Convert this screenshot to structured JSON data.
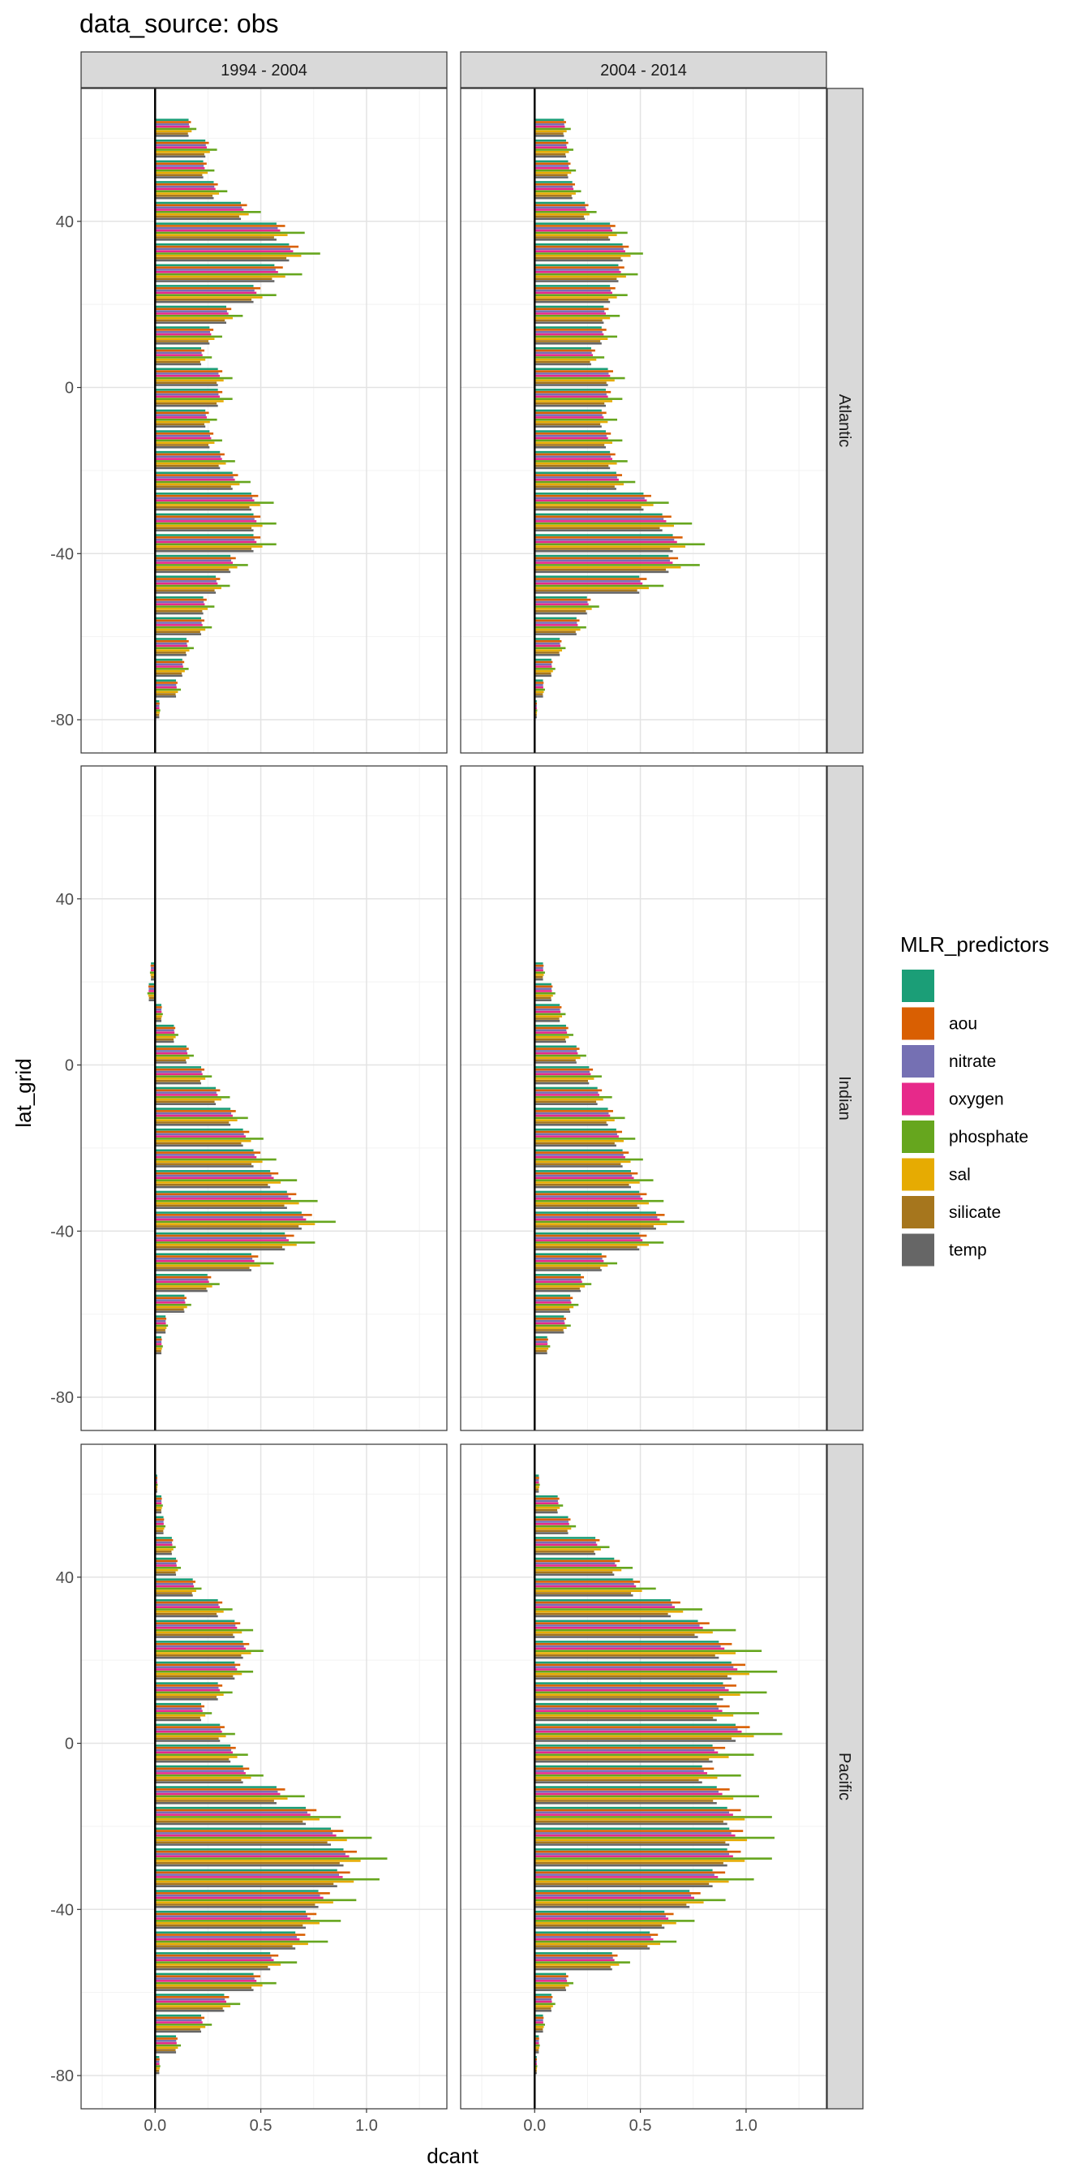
{
  "chart_data": {
    "type": "bar",
    "orientation": "horizontal",
    "title": "data_source: obs",
    "xlabel": "dcant",
    "ylabel": "lat_grid",
    "xlim": [
      -0.35,
      1.38
    ],
    "ylim": [
      -88,
      72
    ],
    "x_ticks": [
      0.0,
      0.5,
      1.0
    ],
    "x_tick_labels": [
      "0.0",
      "0.5",
      "1.0"
    ],
    "y_ticks": [
      -80,
      -40,
      0,
      40
    ],
    "y_tick_labels": [
      "-80",
      "-40",
      "0",
      "40"
    ],
    "grid": true,
    "columns": [
      "1994 - 2004",
      "2004 - 2014"
    ],
    "rows": [
      "Atlantic",
      "Indian",
      "Pacific"
    ],
    "legend": {
      "title": "MLR_predictors",
      "position": "right",
      "entries": [
        {
          "label": "",
          "color": "#1B9E77"
        },
        {
          "label": "aou",
          "color": "#D95F02"
        },
        {
          "label": "nitrate",
          "color": "#7570B3"
        },
        {
          "label": "oxygen",
          "color": "#E7298A"
        },
        {
          "label": "phosphate",
          "color": "#66A61E"
        },
        {
          "label": "sal",
          "color": "#E6AB02"
        },
        {
          "label": "silicate",
          "color": "#A6761D"
        },
        {
          "label": "temp",
          "color": "#666666"
        }
      ]
    },
    "bin_width_deg": 5,
    "series_order": [
      "",
      "aou",
      "nitrate",
      "oxygen",
      "phosphate",
      "sal",
      "silicate",
      "temp"
    ],
    "panels": [
      {
        "row": "Atlantic",
        "col": "1994 - 2004",
        "lat": [
          62.5,
          57.5,
          52.5,
          47.5,
          42.5,
          37.5,
          32.5,
          27.5,
          22.5,
          17.5,
          12.5,
          7.5,
          2.5,
          -2.5,
          -7.5,
          -12.5,
          -17.5,
          -22.5,
          -27.5,
          -32.5,
          -37.5,
          -42.5,
          -47.5,
          -52.5,
          -57.5,
          -62.5,
          -67.5,
          -72.5,
          -77.5,
          -82.5
        ],
        "value": [
          0.16,
          0.24,
          0.23,
          0.28,
          0.41,
          0.58,
          0.64,
          0.57,
          0.47,
          0.34,
          0.26,
          0.22,
          0.3,
          0.3,
          0.24,
          0.26,
          0.31,
          0.37,
          0.46,
          0.47,
          0.47,
          0.36,
          0.29,
          0.23,
          0.22,
          0.15,
          0.13,
          0.1,
          0.02,
          0.0
        ]
      },
      {
        "row": "Atlantic",
        "col": "2004 - 2014",
        "lat": [
          62.5,
          57.5,
          52.5,
          47.5,
          42.5,
          37.5,
          32.5,
          27.5,
          22.5,
          17.5,
          12.5,
          7.5,
          2.5,
          -2.5,
          -7.5,
          -12.5,
          -17.5,
          -22.5,
          -27.5,
          -32.5,
          -37.5,
          -42.5,
          -47.5,
          -52.5,
          -57.5,
          -62.5,
          -67.5,
          -72.5,
          -77.5,
          -82.5
        ],
        "value": [
          0.14,
          0.15,
          0.16,
          0.18,
          0.24,
          0.36,
          0.42,
          0.4,
          0.36,
          0.33,
          0.32,
          0.27,
          0.35,
          0.34,
          0.32,
          0.34,
          0.36,
          0.39,
          0.52,
          0.61,
          0.66,
          0.64,
          0.5,
          0.25,
          0.2,
          0.12,
          0.08,
          0.04,
          0.01,
          0.0
        ]
      },
      {
        "row": "Indian",
        "col": "1994 - 2004",
        "lat": [
          22.5,
          17.5,
          12.5,
          7.5,
          2.5,
          -2.5,
          -7.5,
          -12.5,
          -17.5,
          -22.5,
          -27.5,
          -32.5,
          -37.5,
          -42.5,
          -47.5,
          -52.5,
          -57.5,
          -62.5,
          -67.5
        ],
        "value": [
          -0.02,
          -0.03,
          0.03,
          0.09,
          0.15,
          0.22,
          0.29,
          0.36,
          0.42,
          0.47,
          0.55,
          0.63,
          0.7,
          0.62,
          0.46,
          0.25,
          0.14,
          0.05,
          0.03
        ]
      },
      {
        "row": "Indian",
        "col": "2004 - 2014",
        "lat": [
          22.5,
          17.5,
          12.5,
          7.5,
          2.5,
          -2.5,
          -7.5,
          -12.5,
          -17.5,
          -22.5,
          -27.5,
          -32.5,
          -37.5,
          -42.5,
          -47.5,
          -52.5,
          -57.5,
          -62.5,
          -67.5
        ],
        "value": [
          0.04,
          0.08,
          0.12,
          0.15,
          0.2,
          0.26,
          0.3,
          0.35,
          0.39,
          0.42,
          0.46,
          0.5,
          0.58,
          0.5,
          0.32,
          0.22,
          0.17,
          0.14,
          0.06
        ]
      },
      {
        "row": "Pacific",
        "col": "1994 - 2004",
        "lat": [
          62.5,
          57.5,
          52.5,
          47.5,
          42.5,
          37.5,
          32.5,
          27.5,
          22.5,
          17.5,
          12.5,
          7.5,
          2.5,
          -2.5,
          -7.5,
          -12.5,
          -17.5,
          -22.5,
          -27.5,
          -32.5,
          -37.5,
          -42.5,
          -47.5,
          -52.5,
          -57.5,
          -62.5,
          -67.5,
          -72.5,
          -77.5
        ],
        "value": [
          0.01,
          0.03,
          0.04,
          0.08,
          0.1,
          0.18,
          0.3,
          0.38,
          0.42,
          0.38,
          0.3,
          0.22,
          0.31,
          0.36,
          0.42,
          0.58,
          0.72,
          0.84,
          0.9,
          0.87,
          0.78,
          0.72,
          0.67,
          0.55,
          0.47,
          0.33,
          0.22,
          0.1,
          0.02
        ]
      },
      {
        "row": "Pacific",
        "col": "2004 - 2014",
        "lat": [
          62.5,
          57.5,
          52.5,
          47.5,
          42.5,
          37.5,
          32.5,
          27.5,
          22.5,
          17.5,
          12.5,
          7.5,
          2.5,
          -2.5,
          -7.5,
          -12.5,
          -17.5,
          -22.5,
          -27.5,
          -32.5,
          -37.5,
          -42.5,
          -47.5,
          -52.5,
          -57.5,
          -62.5,
          -67.5,
          -72.5,
          -77.5
        ],
        "value": [
          0.02,
          0.11,
          0.16,
          0.29,
          0.38,
          0.47,
          0.65,
          0.78,
          0.88,
          0.94,
          0.9,
          0.87,
          0.96,
          0.85,
          0.8,
          0.87,
          0.92,
          0.93,
          0.92,
          0.85,
          0.74,
          0.62,
          0.55,
          0.37,
          0.15,
          0.08,
          0.04,
          0.02,
          0.01
        ]
      }
    ]
  }
}
